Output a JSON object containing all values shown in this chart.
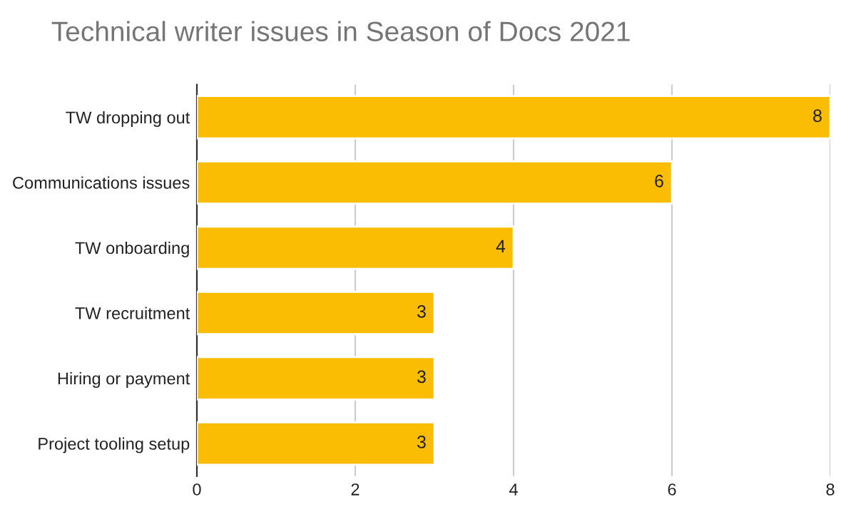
{
  "chart_data": {
    "type": "bar",
    "orientation": "horizontal",
    "title": "Technical writer issues in Season of Docs 2021",
    "categories": [
      "TW dropping out",
      "Communications issues",
      "TW onboarding",
      "TW recruitment",
      "Hiring or payment",
      "Project tooling setup"
    ],
    "values": [
      8,
      6,
      4,
      3,
      3,
      3
    ],
    "color": "#fbbc04",
    "xlim": [
      0,
      8
    ],
    "xticks": [
      0,
      2,
      4,
      6,
      8
    ],
    "grid": "x",
    "data_labels": true
  }
}
